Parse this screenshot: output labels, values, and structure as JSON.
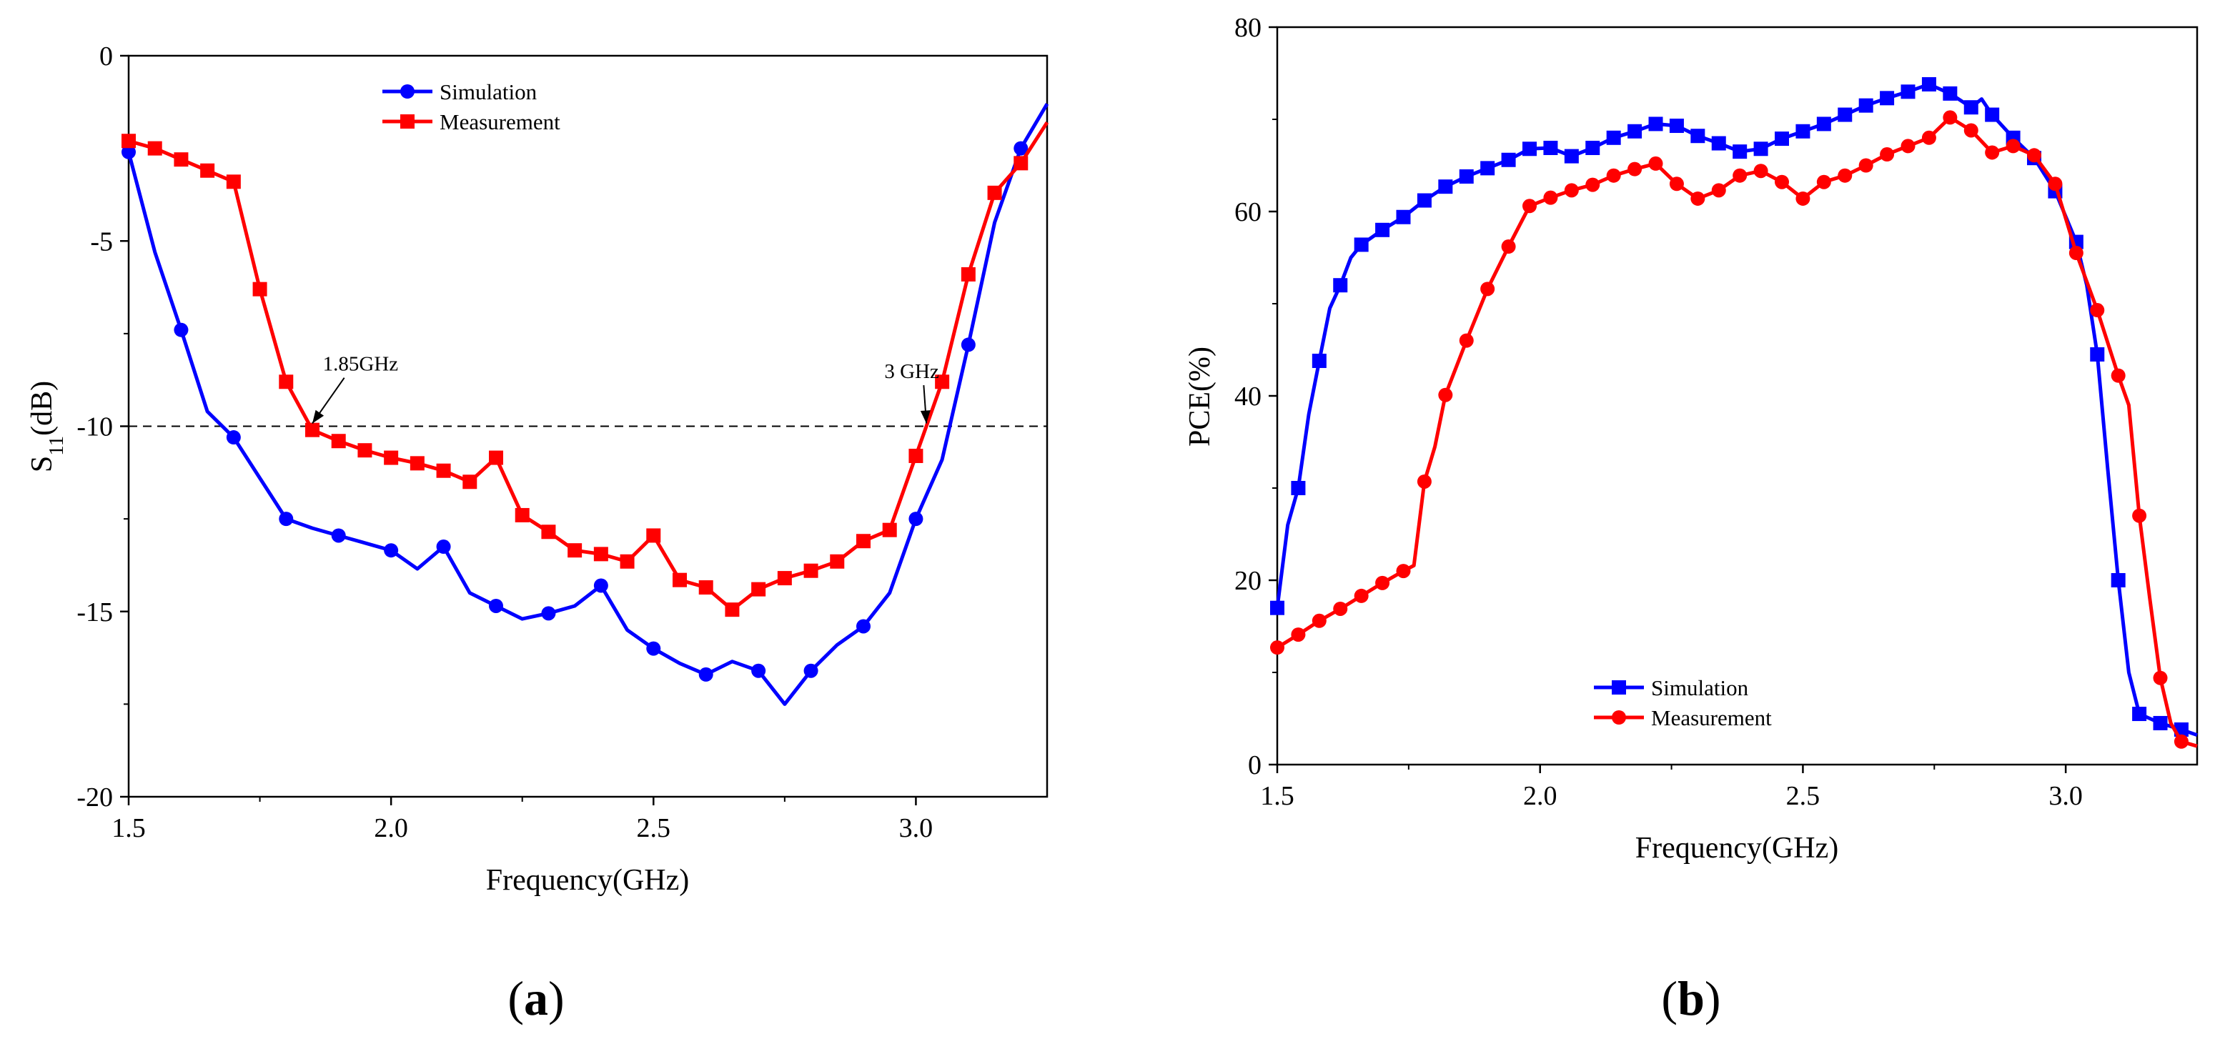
{
  "chart_data": [
    {
      "type": "line",
      "panel_label": "a",
      "xlabel": "Frequency(GHz)",
      "ylabel_main": "S",
      "ylabel_sub": "11",
      "ylabel_unit": "(dB)",
      "xlim": [
        1.5,
        3.25
      ],
      "ylim": [
        -20,
        0
      ],
      "xticks": [
        1.5,
        2.0,
        2.5,
        3.0
      ],
      "xtick_labels": [
        "1.5",
        "2.0",
        "2.5",
        "3.0"
      ],
      "yticks": [
        0,
        -5,
        -10,
        -15,
        -20
      ],
      "ytick_labels": [
        "0",
        "-5",
        "-10",
        "-15",
        "-20"
      ],
      "legend_position": "top-center",
      "reference_line": {
        "y": -10,
        "style": "dashed"
      },
      "annotations": [
        {
          "text": "1.85GHz",
          "x": 1.85,
          "y": -10,
          "text_x": 1.87,
          "text_y": -8.5
        },
        {
          "text": "3 GHz",
          "x": 3.02,
          "y": -10,
          "text_x": 2.94,
          "text_y": -8.7
        }
      ],
      "series": [
        {
          "name": "Simulation",
          "color": "#0000ff",
          "marker": "circle",
          "x": [
            1.5,
            1.55,
            1.6,
            1.65,
            1.7,
            1.75,
            1.8,
            1.85,
            1.9,
            1.95,
            2.0,
            2.05,
            2.1,
            2.15,
            2.2,
            2.25,
            2.3,
            2.35,
            2.4,
            2.45,
            2.5,
            2.55,
            2.6,
            2.65,
            2.7,
            2.75,
            2.8,
            2.85,
            2.9,
            2.95,
            3.0,
            3.05,
            3.1,
            3.15,
            3.2,
            3.25
          ],
          "y": [
            -2.6,
            -5.3,
            -7.4,
            -9.6,
            -10.3,
            -11.4,
            -12.5,
            -12.75,
            -12.95,
            -13.15,
            -13.35,
            -13.85,
            -13.25,
            -14.5,
            -14.85,
            -15.2,
            -15.05,
            -14.85,
            -14.3,
            -15.5,
            -16.0,
            -16.4,
            -16.7,
            -16.35,
            -16.6,
            -17.5,
            -16.6,
            -15.9,
            -15.4,
            -14.5,
            -12.5,
            -10.9,
            -7.8,
            -4.5,
            -2.5,
            -1.3
          ],
          "marker_x": [
            1.5,
            1.6,
            1.7,
            1.8,
            1.9,
            2.0,
            2.1,
            2.2,
            2.3,
            2.4,
            2.5,
            2.6,
            2.7,
            2.8,
            2.9,
            3.0,
            3.1,
            3.2
          ]
        },
        {
          "name": "Measurement",
          "color": "#ff0000",
          "marker": "square",
          "x": [
            1.5,
            1.55,
            1.6,
            1.65,
            1.7,
            1.75,
            1.8,
            1.85,
            1.9,
            1.95,
            2.0,
            2.05,
            2.1,
            2.15,
            2.2,
            2.25,
            2.3,
            2.35,
            2.4,
            2.45,
            2.5,
            2.55,
            2.6,
            2.65,
            2.7,
            2.75,
            2.8,
            2.85,
            2.9,
            2.95,
            3.0,
            3.05,
            3.1,
            3.15,
            3.2,
            3.25
          ],
          "y": [
            -2.3,
            -2.5,
            -2.8,
            -3.1,
            -3.4,
            -6.3,
            -8.8,
            -10.1,
            -10.4,
            -10.65,
            -10.85,
            -11.0,
            -11.2,
            -11.5,
            -10.85,
            -12.4,
            -12.85,
            -13.35,
            -13.45,
            -13.65,
            -12.95,
            -14.15,
            -14.35,
            -14.95,
            -14.4,
            -14.1,
            -13.9,
            -13.65,
            -13.1,
            -12.8,
            -10.8,
            -8.8,
            -5.9,
            -3.7,
            -2.9,
            -1.8
          ],
          "marker_x": [
            1.5,
            1.55,
            1.6,
            1.65,
            1.7,
            1.75,
            1.8,
            1.85,
            1.9,
            1.95,
            2.0,
            2.05,
            2.1,
            2.15,
            2.2,
            2.25,
            2.3,
            2.35,
            2.4,
            2.45,
            2.5,
            2.55,
            2.6,
            2.65,
            2.7,
            2.75,
            2.8,
            2.85,
            2.9,
            2.95,
            3.0,
            3.05,
            3.1,
            3.15,
            3.2
          ]
        }
      ]
    },
    {
      "type": "line",
      "panel_label": "b",
      "xlabel": "Frequency(GHz)",
      "ylabel": "PCE(%)",
      "xlim": [
        1.5,
        3.25
      ],
      "ylim": [
        0,
        80
      ],
      "xticks": [
        1.5,
        2.0,
        2.5,
        3.0
      ],
      "xtick_labels": [
        "1.5",
        "2.0",
        "2.5",
        "3.0"
      ],
      "yticks": [
        0,
        20,
        40,
        60,
        80
      ],
      "ytick_labels": [
        "0",
        "20",
        "40",
        "60",
        "80"
      ],
      "legend_position": "bottom-center",
      "series": [
        {
          "name": "Simulation",
          "color": "#0000ff",
          "marker": "square",
          "x": [
            1.5,
            1.52,
            1.54,
            1.56,
            1.58,
            1.6,
            1.62,
            1.64,
            1.66,
            1.7,
            1.74,
            1.78,
            1.82,
            1.86,
            1.9,
            1.94,
            1.98,
            2.02,
            2.06,
            2.1,
            2.14,
            2.18,
            2.22,
            2.26,
            2.3,
            2.34,
            2.38,
            2.42,
            2.46,
            2.5,
            2.54,
            2.58,
            2.62,
            2.66,
            2.7,
            2.74,
            2.78,
            2.82,
            2.84,
            2.86,
            2.9,
            2.94,
            2.98,
            3.02,
            3.04,
            3.06,
            3.08,
            3.1,
            3.12,
            3.14,
            3.18,
            3.22,
            3.25
          ],
          "y": [
            17,
            26,
            30,
            38,
            43.8,
            49.5,
            52,
            55,
            56.4,
            58,
            59.4,
            61.2,
            62.7,
            63.8,
            64.7,
            65.6,
            66.8,
            66.9,
            66.0,
            66.9,
            68.0,
            68.7,
            69.5,
            69.3,
            68.2,
            67.4,
            66.5,
            66.8,
            67.9,
            68.7,
            69.5,
            70.5,
            71.5,
            72.3,
            73.0,
            73.8,
            72.8,
            71.3,
            72.2,
            70.5,
            68,
            65.8,
            62.2,
            56.7,
            52,
            44.5,
            32,
            20,
            10,
            5.5,
            4.5,
            3.8,
            3.2
          ],
          "marker_x": [
            1.5,
            1.54,
            1.58,
            1.62,
            1.66,
            1.7,
            1.74,
            1.78,
            1.82,
            1.86,
            1.9,
            1.94,
            1.98,
            2.02,
            2.06,
            2.1,
            2.14,
            2.18,
            2.22,
            2.26,
            2.3,
            2.34,
            2.38,
            2.42,
            2.46,
            2.5,
            2.54,
            2.58,
            2.62,
            2.66,
            2.7,
            2.74,
            2.78,
            2.82,
            2.86,
            2.9,
            2.94,
            2.98,
            3.02,
            3.06,
            3.1,
            3.14,
            3.18,
            3.22
          ]
        },
        {
          "name": "Measurement",
          "color": "#ff0000",
          "marker": "circle",
          "x": [
            1.5,
            1.54,
            1.58,
            1.62,
            1.66,
            1.7,
            1.74,
            1.76,
            1.78,
            1.8,
            1.82,
            1.86,
            1.9,
            1.94,
            1.98,
            2.02,
            2.06,
            2.1,
            2.14,
            2.18,
            2.22,
            2.26,
            2.3,
            2.34,
            2.38,
            2.42,
            2.46,
            2.5,
            2.54,
            2.58,
            2.62,
            2.66,
            2.7,
            2.74,
            2.78,
            2.82,
            2.86,
            2.9,
            2.94,
            2.98,
            3.02,
            3.06,
            3.1,
            3.12,
            3.14,
            3.16,
            3.18,
            3.2,
            3.22,
            3.25
          ],
          "y": [
            12.7,
            14.1,
            15.6,
            16.9,
            18.3,
            19.7,
            21.0,
            21.6,
            30.7,
            34.5,
            40.1,
            46.0,
            51.6,
            56.2,
            60.6,
            61.5,
            62.3,
            62.9,
            63.9,
            64.6,
            65.2,
            63,
            61.4,
            62.3,
            63.9,
            64.4,
            63.2,
            61.4,
            63.2,
            63.9,
            65.0,
            66.2,
            67.1,
            68.0,
            70.2,
            68.8,
            66.4,
            67.1,
            66.1,
            63.0,
            55.5,
            49.3,
            42.2,
            39,
            27,
            18,
            9.4,
            4.5,
            2.5,
            2.0
          ],
          "marker_x": [
            1.5,
            1.54,
            1.58,
            1.62,
            1.66,
            1.7,
            1.74,
            1.78,
            1.82,
            1.86,
            1.9,
            1.94,
            1.98,
            2.02,
            2.06,
            2.1,
            2.14,
            2.18,
            2.22,
            2.26,
            2.3,
            2.34,
            2.38,
            2.42,
            2.46,
            2.5,
            2.54,
            2.58,
            2.62,
            2.66,
            2.7,
            2.74,
            2.78,
            2.82,
            2.86,
            2.9,
            2.94,
            2.98,
            3.02,
            3.06,
            3.1,
            3.14,
            3.18,
            3.22
          ]
        }
      ]
    }
  ]
}
